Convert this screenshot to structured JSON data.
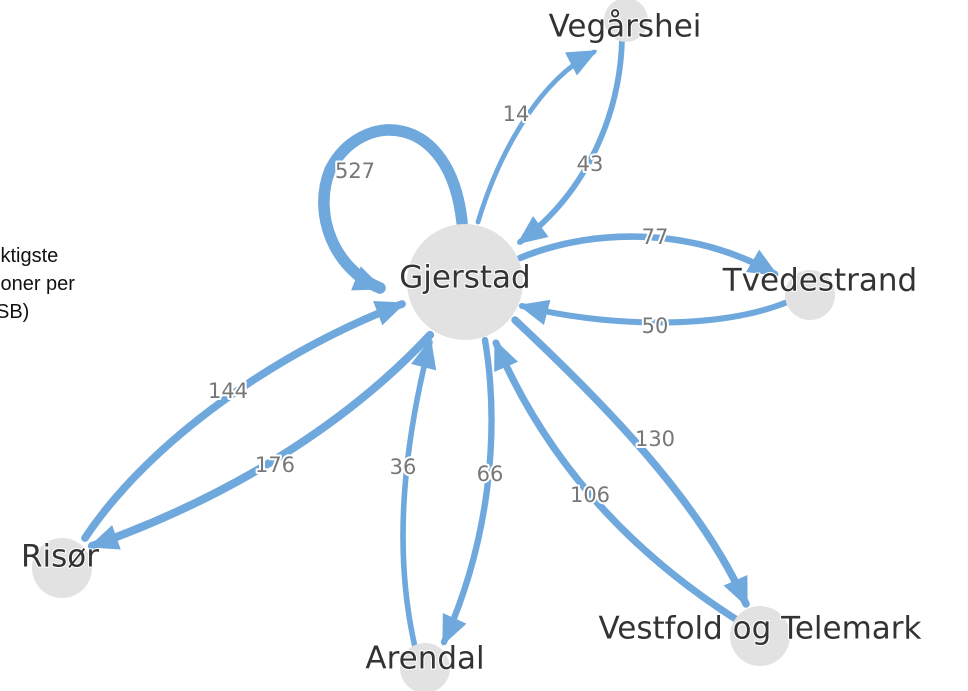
{
  "intro_text": [
    "iktigste",
    "joner per",
    "SB)"
  ],
  "nodes": [
    {
      "label": "Gjerstad"
    },
    {
      "label": "Vegårshei"
    },
    {
      "label": "Tvedestrand"
    },
    {
      "label": "Risør"
    },
    {
      "label": "Arendal"
    },
    {
      "label": "Vestfold og Telemark"
    }
  ],
  "edges": [
    {
      "value": 527
    },
    {
      "value": 14
    },
    {
      "value": 43
    },
    {
      "value": 77
    },
    {
      "value": 50
    },
    {
      "value": 144
    },
    {
      "value": 176
    },
    {
      "value": 36
    },
    {
      "value": 66
    },
    {
      "value": 130
    },
    {
      "value": 106
    }
  ]
}
